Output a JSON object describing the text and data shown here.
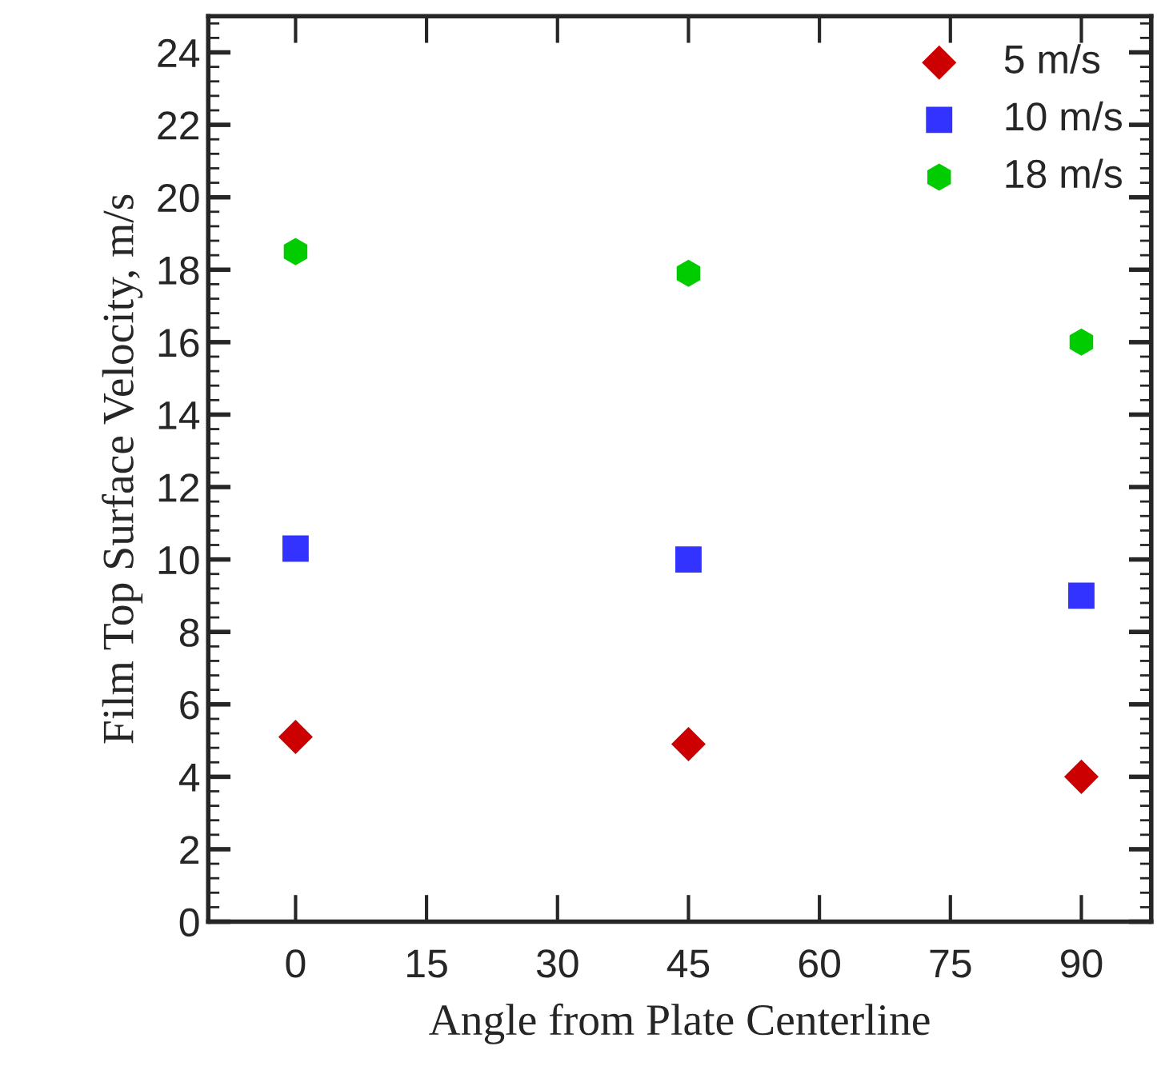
{
  "chart_data": {
    "type": "scatter",
    "xlabel": "Angle from Plate Centerline",
    "ylabel": "Film Top Surface Velocity, m/s",
    "x": [
      0,
      45,
      90
    ],
    "series": [
      {
        "name": "5 m/s",
        "color": "#cc0000",
        "marker": "diamond",
        "values": [
          5.1,
          4.9,
          4.0
        ]
      },
      {
        "name": "10 m/s",
        "color": "#3333ff",
        "marker": "square",
        "values": [
          10.3,
          10.0,
          9.0
        ]
      },
      {
        "name": "18 m/s",
        "color": "#00cc00",
        "marker": "circle",
        "values": [
          18.5,
          17.9,
          16.0
        ]
      }
    ],
    "xlim": [
      -10,
      98
    ],
    "xticks": [
      0,
      15,
      30,
      45,
      60,
      75,
      90
    ],
    "ylim": [
      0,
      25
    ],
    "yticks": [
      0,
      2,
      4,
      6,
      8,
      10,
      12,
      14,
      16,
      18,
      20,
      22,
      24
    ],
    "grid": false,
    "legend": "top right"
  }
}
